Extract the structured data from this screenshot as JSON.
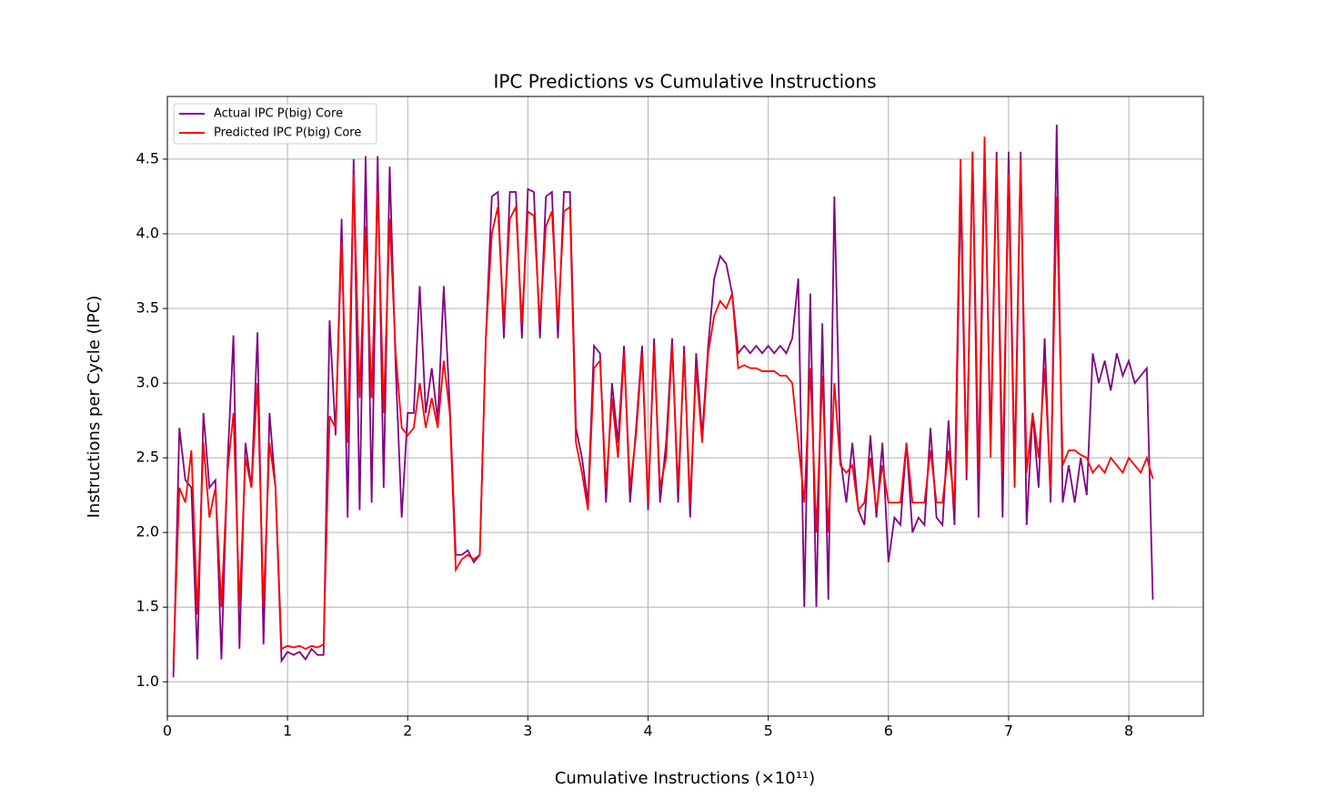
{
  "chart_data": {
    "type": "line",
    "title": "IPC Predictions vs Cumulative Instructions",
    "x_label": "Cumulative Instructions (×10¹¹)",
    "y_label": "Instructions per Cycle (IPC)",
    "xlim": [
      0,
      8.62
    ],
    "ylim": [
      0.77,
      4.92
    ],
    "xticks": [
      0,
      1,
      2,
      3,
      4,
      5,
      6,
      7,
      8
    ],
    "yticks": [
      {
        "value": 1,
        "label": "1.0"
      },
      1.5,
      {
        "value": 2,
        "label": "2.0"
      },
      2.5,
      {
        "value": 3,
        "label": "3.0"
      },
      3.5,
      {
        "value": 4,
        "label": "4.0"
      },
      4.5
    ],
    "grid": true,
    "legend": "upper-left",
    "x": [
      0.05,
      0.1,
      0.15,
      0.2,
      0.25,
      0.3,
      0.35,
      0.4,
      0.45,
      0.5,
      0.55,
      0.6,
      0.65,
      0.7,
      0.75,
      0.8,
      0.85,
      0.9,
      0.95,
      1.0,
      1.05,
      1.1,
      1.15,
      1.2,
      1.25,
      1.3,
      1.35,
      1.4,
      1.45,
      1.5,
      1.55,
      1.6,
      1.65,
      1.7,
      1.75,
      1.8,
      1.85,
      1.9,
      1.95,
      2.0,
      2.05,
      2.1,
      2.15,
      2.2,
      2.25,
      2.3,
      2.35,
      2.4,
      2.45,
      2.5,
      2.55,
      2.6,
      2.65,
      2.7,
      2.75,
      2.8,
      2.85,
      2.9,
      2.95,
      3.0,
      3.05,
      3.1,
      3.15,
      3.2,
      3.25,
      3.3,
      3.35,
      3.4,
      3.45,
      3.5,
      3.55,
      3.6,
      3.65,
      3.7,
      3.75,
      3.8,
      3.85,
      3.9,
      3.95,
      4.0,
      4.05,
      4.1,
      4.15,
      4.2,
      4.25,
      4.3,
      4.35,
      4.4,
      4.45,
      4.5,
      4.55,
      4.6,
      4.65,
      4.7,
      4.75,
      4.8,
      4.85,
      4.9,
      4.95,
      5.0,
      5.05,
      5.1,
      5.15,
      5.2,
      5.25,
      5.3,
      5.35,
      5.4,
      5.45,
      5.5,
      5.55,
      5.6,
      5.65,
      5.7,
      5.75,
      5.8,
      5.85,
      5.9,
      5.95,
      6.0,
      6.05,
      6.1,
      6.15,
      6.2,
      6.25,
      6.3,
      6.35,
      6.4,
      6.45,
      6.5,
      6.55,
      6.6,
      6.65,
      6.7,
      6.75,
      6.8,
      6.85,
      6.9,
      6.95,
      7.0,
      7.05,
      7.1,
      7.15,
      7.2,
      7.25,
      7.3,
      7.35,
      7.4,
      7.45,
      7.5,
      7.55,
      7.6,
      7.65,
      7.7,
      7.75,
      7.8,
      7.85,
      7.9,
      7.95,
      8.0,
      8.05,
      8.1,
      8.15,
      8.2
    ],
    "series": [
      {
        "name": "Actual IPC P(big) Core",
        "color": "#800080",
        "values": [
          1.03,
          2.7,
          2.35,
          2.3,
          1.15,
          2.8,
          2.3,
          2.35,
          1.15,
          2.45,
          3.32,
          1.22,
          2.6,
          2.3,
          3.34,
          1.25,
          2.8,
          2.3,
          1.14,
          1.2,
          1.18,
          1.2,
          1.15,
          1.22,
          1.18,
          1.18,
          3.42,
          2.65,
          4.1,
          2.1,
          4.5,
          2.15,
          4.52,
          2.2,
          4.52,
          2.3,
          4.45,
          3.1,
          2.1,
          2.8,
          2.8,
          3.65,
          2.8,
          3.1,
          2.75,
          3.65,
          2.85,
          1.85,
          1.85,
          1.88,
          1.8,
          1.85,
          3.3,
          4.25,
          4.28,
          3.3,
          4.28,
          4.28,
          3.3,
          4.3,
          4.28,
          3.3,
          4.25,
          4.28,
          3.3,
          4.28,
          4.28,
          2.7,
          2.5,
          2.2,
          3.25,
          3.2,
          2.2,
          3.0,
          2.6,
          3.25,
          2.2,
          2.7,
          3.25,
          2.15,
          3.3,
          2.2,
          2.6,
          3.3,
          2.2,
          3.25,
          2.1,
          3.2,
          2.65,
          3.25,
          3.7,
          3.85,
          3.8,
          3.6,
          3.2,
          3.25,
          3.2,
          3.25,
          3.2,
          3.25,
          3.2,
          3.25,
          3.2,
          3.3,
          3.7,
          1.5,
          3.6,
          1.5,
          3.4,
          1.55,
          4.25,
          2.5,
          2.2,
          2.6,
          2.15,
          2.05,
          2.65,
          2.1,
          2.6,
          1.8,
          2.1,
          2.05,
          2.6,
          2.0,
          2.1,
          2.05,
          2.7,
          2.1,
          2.05,
          2.75,
          2.05,
          4.3,
          2.35,
          4.55,
          2.1,
          4.55,
          2.6,
          4.55,
          2.1,
          4.55,
          2.4,
          4.55,
          2.05,
          2.8,
          2.3,
          3.3,
          2.2,
          4.73,
          2.2,
          2.45,
          2.2,
          2.5,
          2.25,
          3.2,
          3.0,
          3.15,
          2.95,
          3.2,
          3.05,
          3.15,
          3.0,
          3.05,
          3.1,
          1.55
        ]
      },
      {
        "name": "Predicted IPC P(big) Core",
        "color": "#ff0000",
        "values": [
          1.12,
          2.3,
          2.2,
          2.55,
          1.45,
          2.6,
          2.1,
          2.3,
          1.5,
          2.4,
          2.8,
          1.5,
          2.5,
          2.3,
          3.0,
          1.5,
          2.6,
          2.3,
          1.22,
          1.24,
          1.23,
          1.24,
          1.22,
          1.24,
          1.23,
          1.25,
          2.78,
          2.7,
          3.95,
          2.6,
          4.4,
          2.9,
          4.05,
          2.9,
          4.3,
          2.8,
          4.1,
          3.2,
          2.7,
          2.65,
          2.7,
          3.0,
          2.7,
          2.9,
          2.7,
          3.15,
          2.8,
          1.75,
          1.82,
          1.85,
          1.82,
          1.85,
          3.3,
          4.0,
          4.18,
          3.4,
          4.1,
          4.18,
          3.4,
          4.15,
          4.12,
          3.4,
          4.05,
          4.15,
          3.4,
          4.15,
          4.18,
          2.6,
          2.4,
          2.15,
          3.1,
          3.15,
          2.3,
          2.9,
          2.5,
          3.2,
          2.3,
          2.65,
          3.2,
          2.2,
          3.25,
          2.3,
          2.5,
          3.25,
          2.3,
          3.2,
          2.2,
          3.1,
          2.6,
          3.2,
          3.45,
          3.55,
          3.5,
          3.6,
          3.1,
          3.12,
          3.1,
          3.1,
          3.08,
          3.08,
          3.08,
          3.05,
          3.05,
          3.0,
          2.6,
          2.2,
          3.1,
          2.0,
          3.05,
          2.0,
          3.0,
          2.45,
          2.4,
          2.45,
          2.15,
          2.2,
          2.5,
          2.15,
          2.45,
          2.2,
          2.2,
          2.2,
          2.6,
          2.2,
          2.2,
          2.2,
          2.55,
          2.2,
          2.2,
          2.55,
          2.18,
          4.5,
          2.4,
          4.55,
          2.4,
          4.65,
          2.5,
          4.5,
          2.4,
          4.4,
          2.3,
          4.5,
          2.4,
          2.8,
          2.5,
          3.1,
          2.3,
          4.25,
          2.45,
          2.55,
          2.55,
          2.52,
          2.5,
          2.4,
          2.45,
          2.4,
          2.5,
          2.45,
          2.4,
          2.5,
          2.45,
          2.4,
          2.5,
          2.36
        ]
      }
    ]
  }
}
